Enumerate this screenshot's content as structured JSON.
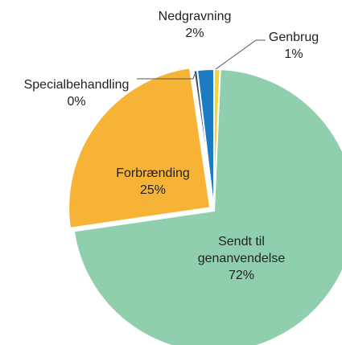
{
  "chart_data": {
    "type": "pie",
    "categories": [
      "Genbrug",
      "Sendt til genanvendelse",
      "Forbrænding",
      "Specialbehandling",
      "Nedgravning"
    ],
    "values": [
      0.7,
      72,
      25,
      0.4,
      1.9
    ],
    "value_labels": [
      "1%",
      "72%",
      "25%",
      "0%",
      "2%"
    ],
    "colors": [
      "#f3d23c",
      "#8fcfae",
      "#f7b336",
      "#2d4f86",
      "#1b7cc4"
    ]
  }
}
